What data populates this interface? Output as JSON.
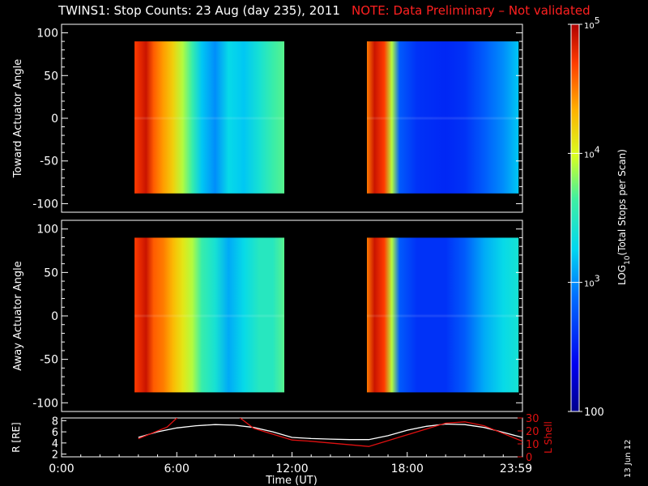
{
  "header": {
    "title": "TWINS1: Stop Counts: 23 Aug (day 235), 2011",
    "note": "NOTE: Data Preliminary – Not validated"
  },
  "datestamp": "13 Jun 12",
  "colors": {
    "background": "#000000",
    "axes": "#ffffff",
    "note": "#ff2020",
    "r_line": "#ffffff",
    "lshell_line": "#e01010"
  },
  "chart_data": [
    {
      "type": "heatmap",
      "panel": "toward",
      "ylabel": "Toward Actuator Angle",
      "ylim": [
        -110,
        110
      ],
      "yticks": [
        100,
        50,
        0,
        -50,
        -100
      ],
      "ytick_labels": [
        "100",
        "50",
        "0",
        "-50",
        "-100"
      ],
      "xlim": [
        0,
        24
      ],
      "data_extent_y": [
        -88,
        90
      ],
      "data_time_ranges": [
        [
          3.8,
          11.6
        ],
        [
          15.9,
          23.8
        ]
      ],
      "log10_counts_profile": [
        {
          "t": 3.8,
          "v": 4.7
        },
        {
          "t": 4.4,
          "v": 4.9
        },
        {
          "t": 4.8,
          "v": 4.6
        },
        {
          "t": 5.3,
          "v": 4.4
        },
        {
          "t": 5.8,
          "v": 4.2
        },
        {
          "t": 6.3,
          "v": 3.9
        },
        {
          "t": 6.8,
          "v": 3.6
        },
        {
          "t": 7.3,
          "v": 3.2
        },
        {
          "t": 8.0,
          "v": 3.0
        },
        {
          "t": 8.7,
          "v": 3.3
        },
        {
          "t": 9.5,
          "v": 3.2
        },
        {
          "t": 10.3,
          "v": 3.4
        },
        {
          "t": 11.0,
          "v": 3.6
        },
        {
          "t": 11.6,
          "v": 3.7
        },
        {
          "t": 15.9,
          "v": 4.5
        },
        {
          "t": 16.3,
          "v": 4.9
        },
        {
          "t": 16.8,
          "v": 4.7
        },
        {
          "t": 17.2,
          "v": 3.9
        },
        {
          "t": 17.6,
          "v": 2.8
        },
        {
          "t": 18.5,
          "v": 2.6
        },
        {
          "t": 20.0,
          "v": 2.55
        },
        {
          "t": 21.0,
          "v": 2.6
        },
        {
          "t": 22.0,
          "v": 2.8
        },
        {
          "t": 23.0,
          "v": 3.0
        },
        {
          "t": 23.8,
          "v": 3.2
        }
      ]
    },
    {
      "type": "heatmap",
      "panel": "away",
      "ylabel": "Away Actuator Angle",
      "ylim": [
        -110,
        110
      ],
      "yticks": [
        100,
        50,
        0,
        -50,
        -100
      ],
      "ytick_labels": [
        "100",
        "50",
        "0",
        "-50",
        "-100"
      ],
      "xlim": [
        0,
        24
      ],
      "data_extent_y": [
        -88,
        90
      ],
      "data_time_ranges": [
        [
          3.8,
          11.6
        ],
        [
          15.9,
          23.8
        ]
      ],
      "log10_counts_profile": [
        {
          "t": 3.8,
          "v": 4.7
        },
        {
          "t": 4.4,
          "v": 4.9
        },
        {
          "t": 4.8,
          "v": 4.6
        },
        {
          "t": 5.3,
          "v": 4.5
        },
        {
          "t": 5.8,
          "v": 4.3
        },
        {
          "t": 6.3,
          "v": 4.1
        },
        {
          "t": 6.8,
          "v": 3.9
        },
        {
          "t": 7.3,
          "v": 3.6
        },
        {
          "t": 8.0,
          "v": 3.4
        },
        {
          "t": 8.7,
          "v": 3.1
        },
        {
          "t": 9.5,
          "v": 3.3
        },
        {
          "t": 10.3,
          "v": 3.5
        },
        {
          "t": 11.0,
          "v": 3.5
        },
        {
          "t": 11.6,
          "v": 3.7
        },
        {
          "t": 15.9,
          "v": 4.5
        },
        {
          "t": 16.3,
          "v": 4.9
        },
        {
          "t": 16.8,
          "v": 4.7
        },
        {
          "t": 17.2,
          "v": 3.9
        },
        {
          "t": 17.6,
          "v": 2.8
        },
        {
          "t": 18.5,
          "v": 2.6
        },
        {
          "t": 20.0,
          "v": 2.6
        },
        {
          "t": 21.0,
          "v": 2.8
        },
        {
          "t": 22.0,
          "v": 3.1
        },
        {
          "t": 23.0,
          "v": 3.3
        },
        {
          "t": 23.8,
          "v": 3.4
        }
      ]
    },
    {
      "type": "line",
      "panel": "orbit",
      "xlabel": "Time (UT)",
      "xlim": [
        0,
        24
      ],
      "xticks": [
        0,
        6,
        12,
        18,
        24
      ],
      "xtick_labels": [
        "0:00",
        "6:00",
        "12:00",
        "18:00",
        "23:59"
      ],
      "ylabel_left": "R [RE]",
      "ylim_left": [
        1.5,
        8.5
      ],
      "yticks_left": [
        2,
        4,
        6,
        8
      ],
      "ytick_labels_left": [
        "2",
        "4",
        "6",
        "8"
      ],
      "ylabel_right": "L Shell",
      "ylim_right": [
        0,
        30
      ],
      "yticks_right": [
        0,
        10,
        20,
        30
      ],
      "ytick_labels_right": [
        "0",
        "10",
        "20",
        "30"
      ],
      "series": [
        {
          "axis": "left",
          "x": [
            4,
            5,
            6,
            7,
            8,
            9,
            10,
            11,
            12,
            13,
            14,
            15,
            16,
            17,
            18,
            19,
            20,
            21,
            22,
            23,
            24
          ],
          "y": [
            5.0,
            6.0,
            6.7,
            7.1,
            7.3,
            7.2,
            6.8,
            6.0,
            5.0,
            4.8,
            4.7,
            4.6,
            4.6,
            5.3,
            6.3,
            7.0,
            7.4,
            7.3,
            6.8,
            5.9,
            5.0
          ]
        },
        {
          "axis": "right",
          "x": [
            4,
            5.5,
            6,
            6.3,
            9,
            9.3,
            10,
            12,
            13,
            16,
            18,
            20,
            21,
            22,
            23,
            24
          ],
          "y": [
            14,
            23,
            30,
            34,
            34,
            30,
            22,
            13,
            12,
            8,
            17,
            26,
            27,
            24,
            18,
            12
          ]
        }
      ]
    }
  ],
  "colorbar": {
    "label": "LOG10(Total Stops per Scan)",
    "label_prefix": "LOG",
    "label_sub": "10",
    "label_suffix": "(Total Stops per Scan)",
    "range_log10": [
      2,
      5
    ],
    "ticks": [
      {
        "value": 5,
        "base": "10",
        "exp": "5"
      },
      {
        "value": 4,
        "base": "10",
        "exp": "4"
      },
      {
        "value": 3,
        "base": "10",
        "exp": "3"
      },
      {
        "value": 2,
        "base": "100",
        "exp": ""
      }
    ]
  }
}
